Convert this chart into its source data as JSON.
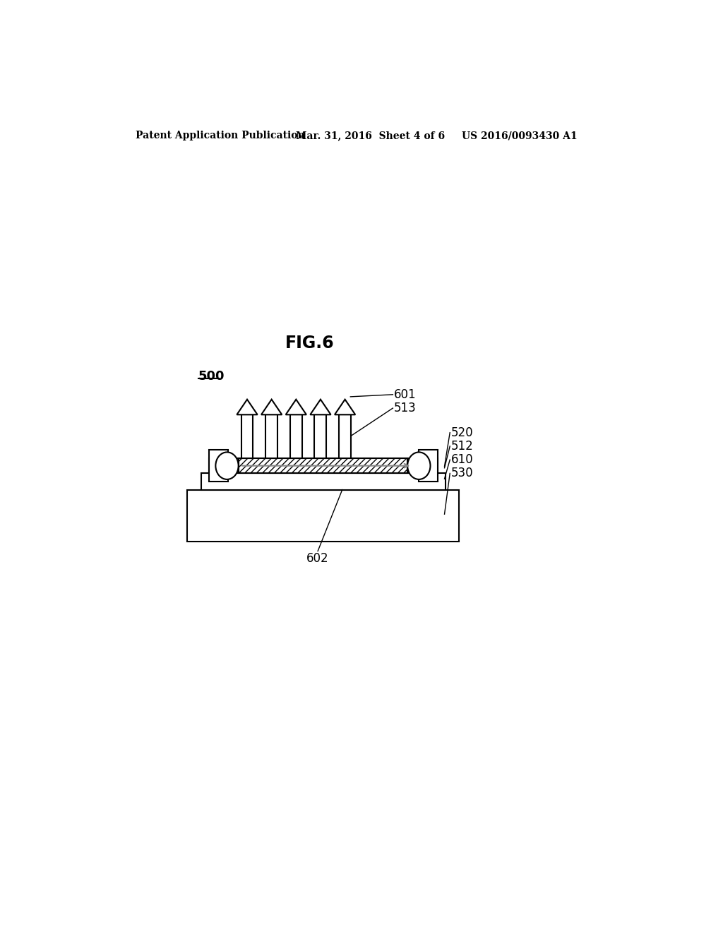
{
  "bg_color": "#ffffff",
  "line_color": "#000000",
  "header_left": "Patent Application Publication",
  "header_mid": "Mar. 31, 2016  Sheet 4 of 6",
  "header_right": "US 2016/0093430 A1",
  "fig_label": "FIG.6",
  "label_500": "500",
  "label_601": "601",
  "label_513": "513",
  "label_520": "520",
  "label_512": "512",
  "label_610": "610",
  "label_530": "530",
  "label_602": "602"
}
